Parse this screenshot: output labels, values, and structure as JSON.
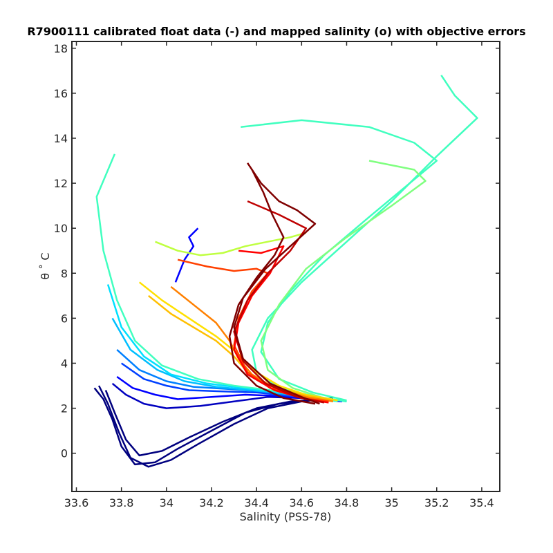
{
  "chart_data": {
    "type": "line",
    "title": "R7900111 calibrated float data (-) and mapped salinity (o) with objective errors",
    "xlabel": "Salinity (PSS-78)",
    "ylabel": "θ ˚ C",
    "xlim": [
      33.58,
      35.48
    ],
    "ylim": [
      -1.7,
      18.3
    ],
    "xticks": [
      33.6,
      33.8,
      34,
      34.2,
      34.4,
      34.6,
      34.8,
      35,
      35.2,
      35.4
    ],
    "xtick_labels": [
      "33.6",
      "33.8",
      "34",
      "34.2",
      "34.4",
      "34.6",
      "34.8",
      "35",
      "35.2",
      "35.4"
    ],
    "yticks": [
      0,
      2,
      4,
      6,
      8,
      10,
      12,
      14,
      16,
      18
    ],
    "ytick_labels": [
      "0",
      "2",
      "4",
      "6",
      "8",
      "10",
      "12",
      "14",
      "16",
      "18"
    ],
    "grid": false,
    "colormap": "jet (profile number, early = dark blue, late = dark red)",
    "series": [
      {
        "color": "#00007f",
        "x": [
          33.68,
          33.72,
          33.76,
          33.8,
          33.86,
          33.95,
          34.05,
          34.2,
          34.35,
          34.5,
          34.62,
          34.72
        ],
        "y": [
          2.9,
          2.4,
          1.5,
          0.3,
          -0.5,
          -0.4,
          0.2,
          1.0,
          1.8,
          2.2,
          2.35,
          2.4
        ]
      },
      {
        "color": "#00007f",
        "x": [
          33.7,
          33.74,
          33.79,
          33.84,
          33.92,
          34.02,
          34.14,
          34.3,
          34.45,
          34.6,
          34.74
        ],
        "y": [
          3.0,
          2.2,
          0.9,
          -0.2,
          -0.6,
          -0.3,
          0.4,
          1.3,
          2.0,
          2.3,
          2.45
        ]
      },
      {
        "color": "#00007f",
        "x": [
          33.73,
          33.77,
          33.82,
          33.88,
          33.98,
          34.1,
          34.25,
          34.4,
          34.55,
          34.7
        ],
        "y": [
          2.8,
          1.8,
          0.6,
          -0.1,
          0.1,
          0.7,
          1.4,
          2.0,
          2.3,
          2.4
        ]
      },
      {
        "color": "#0000bf",
        "x": [
          33.76,
          33.82,
          33.9,
          34.0,
          34.15,
          34.3,
          34.45,
          34.6,
          34.75
        ],
        "y": [
          3.1,
          2.6,
          2.2,
          2.0,
          2.1,
          2.3,
          2.5,
          2.45,
          2.35
        ]
      },
      {
        "color": "#0000ff",
        "x": [
          33.78,
          33.85,
          33.95,
          34.05,
          34.2,
          34.35,
          34.5,
          34.65,
          34.78
        ],
        "y": [
          3.4,
          2.9,
          2.6,
          2.4,
          2.5,
          2.6,
          2.55,
          2.4,
          2.3
        ]
      },
      {
        "color": "#0000ff",
        "x": [
          34.04,
          34.08,
          34.12,
          34.1,
          34.14
        ],
        "y": [
          7.6,
          8.6,
          9.2,
          9.6,
          10.0
        ]
      },
      {
        "color": "#0040ff",
        "x": [
          33.8,
          33.9,
          34.0,
          34.1,
          34.25,
          34.4,
          34.55,
          34.7
        ],
        "y": [
          4.0,
          3.3,
          3.0,
          2.8,
          2.75,
          2.7,
          2.55,
          2.4
        ]
      },
      {
        "color": "#0080ff",
        "x": [
          33.78,
          33.88,
          34.0,
          34.12,
          34.28,
          34.42,
          34.58,
          34.72
        ],
        "y": [
          4.6,
          3.7,
          3.2,
          2.95,
          2.85,
          2.75,
          2.55,
          2.35
        ]
      },
      {
        "color": "#00bfff",
        "x": [
          33.76,
          33.84,
          33.96,
          34.08,
          34.22,
          34.38,
          34.52,
          34.66,
          34.8
        ],
        "y": [
          6.0,
          4.6,
          3.7,
          3.2,
          2.95,
          2.8,
          2.65,
          2.5,
          2.3
        ]
      },
      {
        "color": "#00e0ff",
        "x": [
          33.74,
          33.8,
          33.9,
          34.02,
          34.18,
          34.34,
          34.5,
          34.66,
          34.8
        ],
        "y": [
          7.5,
          5.6,
          4.3,
          3.5,
          3.1,
          2.9,
          2.7,
          2.5,
          2.3
        ]
      },
      {
        "color": "#40ffbf",
        "x": [
          33.77,
          33.69,
          33.72,
          33.78,
          33.86,
          33.98,
          34.14,
          34.3,
          34.46,
          34.62,
          34.76
        ],
        "y": [
          13.3,
          11.4,
          9.0,
          6.8,
          5.0,
          3.9,
          3.3,
          3.0,
          2.8,
          2.55,
          2.3
        ]
      },
      {
        "color": "#40ffbf",
        "x": [
          35.22,
          35.28,
          35.38,
          35.2,
          35.0,
          34.8,
          34.6,
          34.45,
          34.38,
          34.4,
          34.5,
          34.65,
          34.8
        ],
        "y": [
          16.8,
          15.9,
          14.9,
          13.2,
          11.2,
          9.4,
          7.6,
          6.0,
          4.6,
          3.6,
          2.9,
          2.55,
          2.3
        ]
      },
      {
        "color": "#40ffbf",
        "x": [
          34.33,
          34.6,
          34.9,
          35.1,
          35.2,
          35.08,
          34.9,
          34.7,
          34.55,
          34.45,
          34.42,
          34.5,
          34.65,
          34.8
        ],
        "y": [
          14.5,
          14.8,
          14.5,
          13.8,
          13.0,
          12.0,
          10.5,
          8.8,
          7.2,
          5.8,
          4.5,
          3.3,
          2.7,
          2.35
        ]
      },
      {
        "color": "#80ff80",
        "x": [
          34.9,
          35.1,
          35.15,
          35.0,
          34.8,
          34.62,
          34.5,
          34.42,
          34.45,
          34.56,
          34.7
        ],
        "y": [
          13.0,
          12.6,
          12.1,
          11.0,
          9.6,
          8.2,
          6.6,
          5.0,
          3.7,
          2.9,
          2.45
        ]
      },
      {
        "color": "#bfff40",
        "x": [
          33.95,
          34.05,
          34.15,
          34.25,
          34.35,
          34.45,
          34.55,
          34.62
        ],
        "y": [
          9.4,
          9.0,
          8.8,
          8.9,
          9.2,
          9.4,
          9.6,
          9.8
        ]
      },
      {
        "color": "#ffe000",
        "x": [
          33.88,
          33.98,
          34.1,
          34.22,
          34.32,
          34.4,
          34.5,
          34.62,
          34.76
        ],
        "y": [
          7.6,
          6.8,
          6.0,
          5.2,
          4.4,
          3.6,
          3.0,
          2.6,
          2.35
        ]
      },
      {
        "color": "#ffbf00",
        "x": [
          33.92,
          34.02,
          34.12,
          34.22,
          34.3,
          34.36,
          34.46,
          34.6,
          34.74
        ],
        "y": [
          7.0,
          6.2,
          5.6,
          5.0,
          4.3,
          3.6,
          3.0,
          2.6,
          2.35
        ]
      },
      {
        "color": "#ff8000",
        "x": [
          34.02,
          34.12,
          34.22,
          34.28,
          34.32,
          34.38,
          34.48,
          34.62,
          34.74
        ],
        "y": [
          7.4,
          6.6,
          5.8,
          5.0,
          4.2,
          3.5,
          2.9,
          2.5,
          2.3
        ]
      },
      {
        "color": "#ff4000",
        "x": [
          34.05,
          34.18,
          34.3,
          34.4,
          34.45,
          34.38,
          34.32,
          34.3,
          34.36,
          34.46,
          34.6,
          34.72
        ],
        "y": [
          8.6,
          8.3,
          8.1,
          8.2,
          8.0,
          7.2,
          6.0,
          4.8,
          3.6,
          2.9,
          2.45,
          2.3
        ]
      },
      {
        "color": "#ff0000",
        "x": [
          34.32,
          34.42,
          34.52,
          34.46,
          34.38,
          34.32,
          34.3,
          34.36,
          34.48,
          34.62,
          34.72
        ],
        "y": [
          9.0,
          8.9,
          9.2,
          8.0,
          7.0,
          5.8,
          4.6,
          3.5,
          2.8,
          2.4,
          2.25
        ]
      },
      {
        "color": "#bf0000",
        "x": [
          34.36,
          34.5,
          34.62,
          34.55,
          34.45,
          34.36,
          34.3,
          34.34,
          34.44,
          34.58,
          34.7
        ],
        "y": [
          11.2,
          10.6,
          10.0,
          9.0,
          8.0,
          6.8,
          5.4,
          4.1,
          3.1,
          2.5,
          2.25
        ]
      },
      {
        "color": "#7f0000",
        "x": [
          34.38,
          34.43,
          34.47,
          34.52,
          34.48,
          34.4,
          34.32,
          34.28,
          34.3,
          34.4,
          34.52,
          34.66
        ],
        "y": [
          12.6,
          11.6,
          10.6,
          9.6,
          8.8,
          7.8,
          6.6,
          5.2,
          4.0,
          3.0,
          2.45,
          2.2
        ]
      },
      {
        "color": "#7f0000",
        "x": [
          34.36,
          34.42,
          34.5,
          34.58,
          34.66,
          34.55,
          34.44,
          34.34,
          34.3,
          34.34,
          34.46,
          34.6,
          34.68
        ],
        "y": [
          12.9,
          12.0,
          11.2,
          10.8,
          10.2,
          9.2,
          8.2,
          6.9,
          5.6,
          4.2,
          3.1,
          2.5,
          2.2
        ]
      }
    ]
  }
}
